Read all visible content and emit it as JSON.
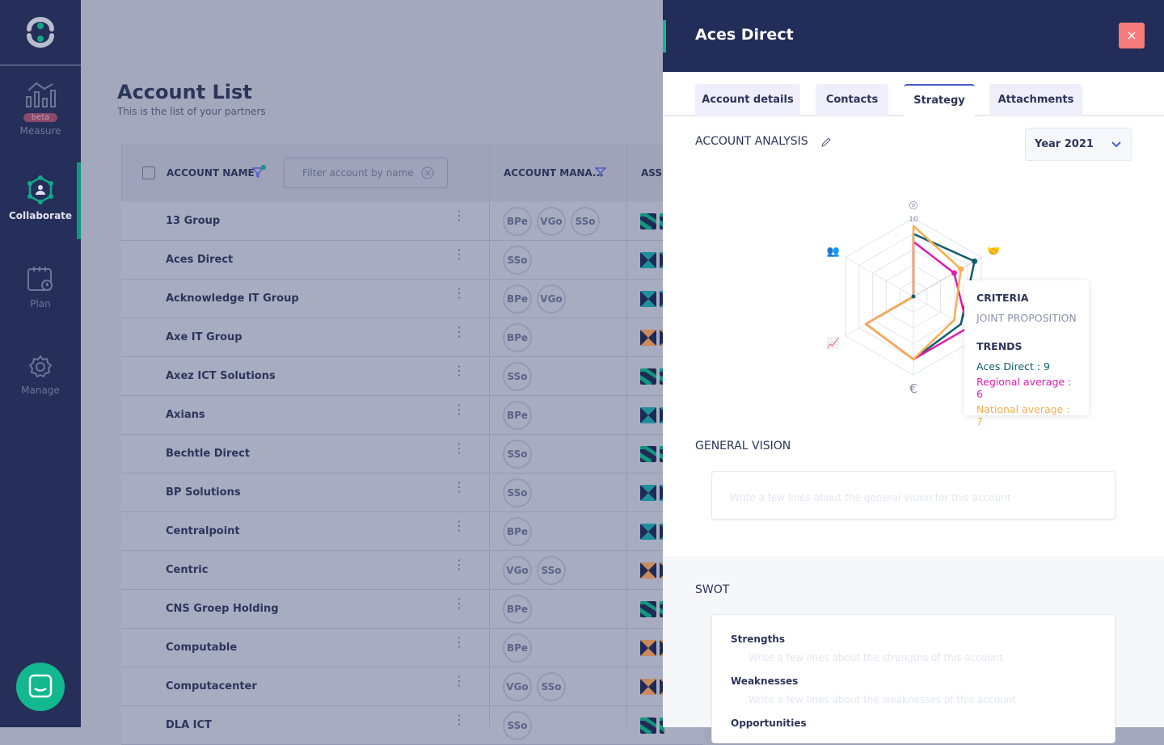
{
  "sidebar": {
    "items": [
      {
        "label": "Measure",
        "badge": "beta",
        "icon": "chart-icon"
      },
      {
        "label": "Collaborate",
        "icon": "network-user-icon",
        "active": true
      },
      {
        "label": "Plan",
        "icon": "calendar-clock-icon"
      },
      {
        "label": "Manage",
        "icon": "gear-icon"
      }
    ]
  },
  "main": {
    "title": "Account List",
    "subtitle": "This is the list of your partners",
    "columns": {
      "name": "ACCOUNT NAME",
      "manager": "ACCOUNT MANA...",
      "assigned": "ASSI"
    },
    "filter_placeholder": "Filter account by name",
    "rows": [
      {
        "name": "13 Group",
        "managers": [
          "BPe",
          "VGo",
          "SSo"
        ],
        "assigned": "green"
      },
      {
        "name": "Aces Direct",
        "managers": [
          "SSo"
        ],
        "assigned": "teal"
      },
      {
        "name": "Acknowledge IT Group",
        "managers": [
          "BPe",
          "VGo"
        ],
        "assigned": "teal"
      },
      {
        "name": "Axe IT Group",
        "managers": [
          "BPe"
        ],
        "assigned": "orange"
      },
      {
        "name": "Axez ICT Solutions",
        "managers": [
          "SSo"
        ],
        "assigned": "green"
      },
      {
        "name": "Axians",
        "managers": [
          "BPe"
        ],
        "assigned": "teal"
      },
      {
        "name": "Bechtle Direct",
        "managers": [
          "SSo"
        ],
        "assigned": "green"
      },
      {
        "name": "BP Solutions",
        "managers": [
          "SSo"
        ],
        "assigned": "teal"
      },
      {
        "name": "Centralpoint",
        "managers": [
          "BPe"
        ],
        "assigned": "teal"
      },
      {
        "name": "Centric",
        "managers": [
          "VGo",
          "SSo"
        ],
        "assigned": "orange"
      },
      {
        "name": "CNS Groep Holding",
        "managers": [
          "BPe"
        ],
        "assigned": "green"
      },
      {
        "name": "Computable",
        "managers": [
          "BPe"
        ],
        "assigned": "orange"
      },
      {
        "name": "Computacenter",
        "managers": [
          "VGo",
          "SSo"
        ],
        "assigned": "orange"
      },
      {
        "name": "DLA ICT",
        "managers": [
          "SSo"
        ],
        "assigned": "green"
      }
    ]
  },
  "panel": {
    "title": "Aces Direct",
    "close": "×",
    "tabs": [
      {
        "label": "Account details"
      },
      {
        "label": "Contacts"
      },
      {
        "label": "Strategy",
        "active": true
      },
      {
        "label": "Attachments"
      }
    ],
    "analysis_title": "ACCOUNT ANALYSIS",
    "year": "Year 2021",
    "tooltip": {
      "criteria_label": "CRITERIA",
      "criteria": "JOINT PROPOSITION",
      "trends_label": "TRENDS",
      "lines": [
        "Aces Direct : 9",
        "Regional average : 6",
        "National average : 7"
      ]
    },
    "vision_title": "GENERAL VISION",
    "vision_placeholder": "Write a few lines about the general vision for this account",
    "swot_title": "SWOT",
    "swot": [
      {
        "label": "Strengths",
        "placeholder": "Write a few lines about the strengths of this account"
      },
      {
        "label": "Weaknesses",
        "placeholder": "Write a few lines about the weaknesses of this account"
      },
      {
        "label": "Opportunities"
      }
    ]
  },
  "chart_data": {
    "type": "radar",
    "max": 10,
    "tick_label": "10",
    "axes": [
      "target-icon",
      "handshake-icon",
      "hidden",
      "euro-icon",
      "trend-icon",
      "people-icon"
    ],
    "series": [
      {
        "name": "Aces Direct",
        "color": "#0e5e6f",
        "values": [
          8,
          9,
          7,
          8,
          7,
          0
        ]
      },
      {
        "name": "Regional average",
        "color": "#e01bb3",
        "values": [
          7,
          6,
          8,
          8,
          7,
          0
        ]
      },
      {
        "name": "National average",
        "color": "#f9ad4e",
        "values": [
          9,
          7,
          6,
          8,
          7,
          0
        ]
      }
    ]
  }
}
